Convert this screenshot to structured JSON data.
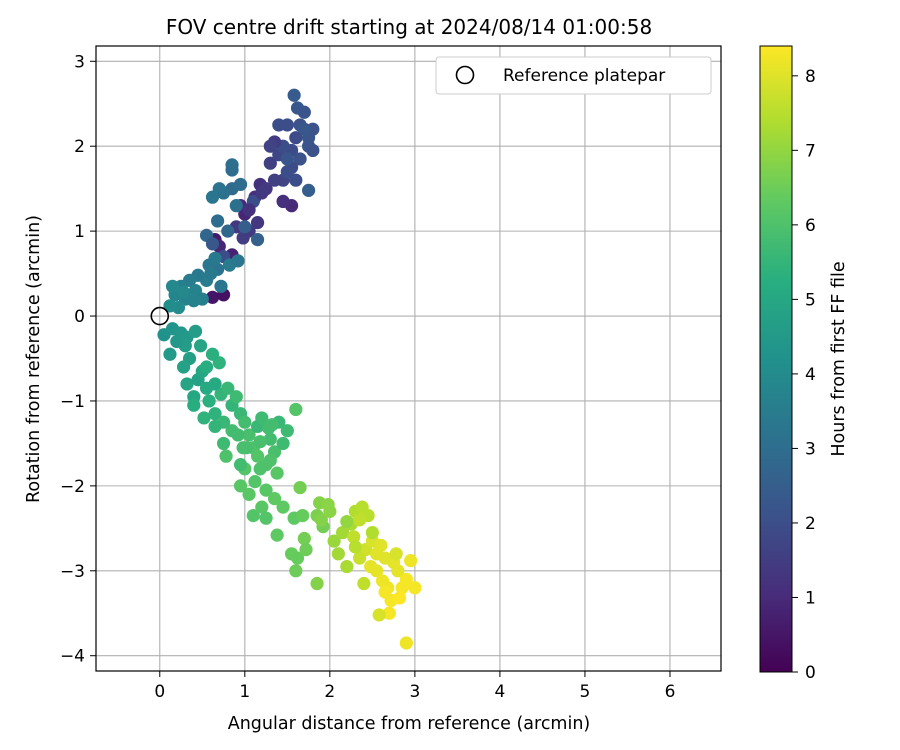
{
  "chart_data": {
    "type": "scatter",
    "title": "FOV centre drift starting at 2024/08/14 01:00:58",
    "xlabel": "Angular distance from reference (arcmin)",
    "ylabel": "Rotation from reference (arcmin)",
    "xlim": [
      -0.75,
      6.6
    ],
    "ylim": [
      -4.18,
      3.18
    ],
    "xticks": [
      "0",
      "1",
      "2",
      "3",
      "4",
      "5",
      "6"
    ],
    "yticks": [
      "3",
      "2",
      "1",
      "0",
      "−1",
      "−2",
      "−3",
      "−4"
    ],
    "grid": true,
    "legend": {
      "position": "top-right",
      "entries": [
        "Reference platepar"
      ]
    },
    "colorbar": {
      "label": "Hours from first FF file",
      "range": [
        0,
        8.4
      ],
      "colormap": "viridis",
      "ticks": [
        "0",
        "1",
        "2",
        "3",
        "4",
        "5",
        "6",
        "7",
        "8"
      ]
    },
    "reference_point": {
      "x": 0,
      "y": 0
    },
    "series": [
      {
        "points": [
          [
            0.62,
            0.22
          ],
          [
            0.75,
            0.25
          ],
          [
            0.65,
            0.9
          ],
          [
            0.7,
            0.82
          ],
          [
            0.85,
            0.72
          ],
          [
            0.95,
            1.3
          ],
          [
            1.0,
            1.2
          ],
          [
            1.12,
            1.4
          ],
          [
            1.18,
            1.55
          ],
          [
            1.15,
            1.1
          ],
          [
            0.98,
            0.92
          ],
          [
            1.05,
            1.0
          ],
          [
            1.3,
            1.8
          ],
          [
            1.45,
            1.6
          ],
          [
            1.4,
            1.9
          ],
          [
            1.55,
            1.95
          ],
          [
            1.45,
            2.0
          ],
          [
            1.55,
            1.75
          ],
          [
            1.65,
            2.25
          ],
          [
            1.75,
            2.1
          ],
          [
            1.62,
            2.45
          ],
          [
            1.7,
            2.4
          ],
          [
            1.58,
            2.6
          ],
          [
            1.8,
            2.2
          ],
          [
            1.5,
            2.25
          ],
          [
            1.35,
            2.05
          ],
          [
            1.25,
            1.5
          ],
          [
            1.1,
            1.35
          ],
          [
            0.9,
            1.05
          ],
          [
            1.55,
            1.3
          ],
          [
            1.65,
            1.85
          ],
          [
            1.5,
            1.85
          ],
          [
            1.3,
            2.0
          ],
          [
            1.45,
            1.35
          ],
          [
            1.6,
            1.6
          ],
          [
            1.75,
            2.0
          ],
          [
            1.7,
            2.2
          ],
          [
            1.4,
            2.25
          ],
          [
            1.6,
            2.1
          ],
          [
            1.8,
            1.95
          ],
          [
            1.75,
            1.48
          ],
          [
            1.5,
            1.7
          ],
          [
            1.35,
            1.6
          ],
          [
            1.2,
            1.45
          ],
          [
            1.05,
            1.25
          ],
          [
            0.85,
            1.5
          ],
          [
            0.95,
            1.55
          ],
          [
            0.75,
            1.45
          ],
          [
            0.7,
            1.5
          ],
          [
            0.62,
            1.4
          ],
          [
            0.68,
            1.12
          ],
          [
            0.8,
            1.0
          ],
          [
            0.9,
            1.3
          ],
          [
            1.0,
            1.05
          ],
          [
            1.15,
            0.9
          ],
          [
            0.55,
            0.95
          ],
          [
            0.62,
            0.85
          ],
          [
            0.75,
            0.7
          ],
          [
            0.68,
            0.55
          ],
          [
            0.58,
            0.6
          ],
          [
            0.55,
            0.42
          ],
          [
            0.45,
            0.48
          ],
          [
            0.35,
            0.42
          ],
          [
            0.25,
            0.35
          ],
          [
            0.3,
            0.2
          ],
          [
            0.18,
            0.25
          ],
          [
            0.15,
            0.35
          ],
          [
            0.22,
            0.1
          ],
          [
            0.28,
            0.28
          ],
          [
            0.42,
            0.3
          ],
          [
            0.5,
            0.2
          ],
          [
            0.6,
            0.5
          ],
          [
            0.72,
            0.35
          ],
          [
            0.82,
            0.6
          ],
          [
            0.92,
            0.65
          ],
          [
            0.85,
            1.78
          ],
          [
            0.85,
            1.72
          ],
          [
            0.65,
            0.68
          ],
          [
            0.4,
            0.18
          ],
          [
            0.12,
            0.12
          ],
          [
            0.05,
            -0.22
          ],
          [
            0.15,
            -0.15
          ],
          [
            0.25,
            -0.2
          ],
          [
            0.32,
            -0.25
          ],
          [
            0.42,
            -0.18
          ],
          [
            0.3,
            -0.35
          ],
          [
            0.35,
            -0.5
          ],
          [
            0.28,
            -0.6
          ],
          [
            0.32,
            -0.8
          ],
          [
            0.4,
            -0.95
          ],
          [
            0.45,
            -0.75
          ],
          [
            0.5,
            -0.65
          ],
          [
            0.55,
            -0.85
          ],
          [
            0.4,
            -1.05
          ],
          [
            0.52,
            -1.2
          ],
          [
            0.58,
            -1.0
          ],
          [
            0.65,
            -1.15
          ],
          [
            0.72,
            -0.92
          ],
          [
            0.8,
            -0.85
          ],
          [
            0.85,
            -1.05
          ],
          [
            0.9,
            -0.95
          ],
          [
            0.95,
            -1.15
          ],
          [
            1.0,
            -1.25
          ],
          [
            1.05,
            -1.4
          ],
          [
            1.1,
            -1.55
          ],
          [
            1.0,
            -1.8
          ],
          [
            0.98,
            -1.55
          ],
          [
            0.85,
            -1.35
          ],
          [
            0.75,
            -1.5
          ],
          [
            0.78,
            -1.65
          ],
          [
            0.7,
            -0.55
          ],
          [
            0.62,
            -0.45
          ],
          [
            0.55,
            -0.6
          ],
          [
            0.48,
            -0.35
          ],
          [
            0.12,
            -0.45
          ],
          [
            0.2,
            -0.3
          ],
          [
            0.65,
            -0.8
          ],
          [
            0.75,
            -1.25
          ],
          [
            0.92,
            -1.4
          ],
          [
            1.15,
            -1.3
          ],
          [
            1.2,
            -1.2
          ],
          [
            1.3,
            -1.45
          ],
          [
            1.35,
            -1.6
          ],
          [
            1.25,
            -1.75
          ],
          [
            1.4,
            -1.25
          ],
          [
            1.5,
            -1.35
          ],
          [
            1.15,
            -1.65
          ],
          [
            1.05,
            -2.1
          ],
          [
            1.1,
            -2.35
          ],
          [
            1.2,
            -2.25
          ],
          [
            1.35,
            -2.15
          ],
          [
            1.25,
            -2.05
          ],
          [
            0.95,
            -2.0
          ],
          [
            1.12,
            -1.95
          ],
          [
            1.3,
            -1.7
          ],
          [
            1.6,
            -1.1
          ],
          [
            1.28,
            -1.32
          ],
          [
            1.18,
            -1.48
          ],
          [
            1.45,
            -1.5
          ],
          [
            1.38,
            -1.85
          ],
          [
            1.25,
            -2.38
          ],
          [
            1.38,
            -2.58
          ],
          [
            1.45,
            -2.25
          ],
          [
            1.58,
            -2.38
          ],
          [
            1.68,
            -2.35
          ],
          [
            1.55,
            -2.8
          ],
          [
            1.62,
            -2.85
          ],
          [
            1.7,
            -2.62
          ],
          [
            1.72,
            -2.75
          ],
          [
            1.65,
            -2.02
          ],
          [
            1.85,
            -2.35
          ],
          [
            1.92,
            -2.48
          ],
          [
            1.9,
            -2.4
          ],
          [
            2.0,
            -2.3
          ],
          [
            1.88,
            -2.2
          ],
          [
            1.98,
            -2.22
          ],
          [
            1.6,
            -3.0
          ],
          [
            1.85,
            -3.15
          ],
          [
            2.1,
            -2.8
          ],
          [
            2.2,
            -2.95
          ],
          [
            2.05,
            -2.65
          ],
          [
            2.15,
            -2.55
          ],
          [
            2.25,
            -2.45
          ],
          [
            2.3,
            -2.3
          ],
          [
            2.38,
            -2.25
          ],
          [
            2.45,
            -2.35
          ],
          [
            2.35,
            -2.4
          ],
          [
            2.28,
            -2.6
          ],
          [
            2.42,
            -2.75
          ],
          [
            2.35,
            -2.85
          ],
          [
            2.5,
            -2.65
          ],
          [
            2.6,
            -2.7
          ],
          [
            2.55,
            -2.8
          ],
          [
            2.48,
            -2.95
          ],
          [
            2.55,
            -3.0
          ],
          [
            2.62,
            -3.12
          ],
          [
            2.68,
            -3.2
          ],
          [
            2.72,
            -3.35
          ],
          [
            2.65,
            -3.25
          ],
          [
            2.8,
            -3.0
          ],
          [
            2.85,
            -3.2
          ],
          [
            2.9,
            -3.1
          ],
          [
            2.82,
            -3.32
          ],
          [
            2.95,
            -2.88
          ],
          [
            2.75,
            -2.9
          ],
          [
            2.65,
            -2.85
          ],
          [
            2.7,
            -3.5
          ],
          [
            2.58,
            -3.52
          ],
          [
            2.9,
            -3.85
          ],
          [
            3.0,
            -3.2
          ],
          [
            2.4,
            -3.15
          ],
          [
            2.3,
            -2.72
          ],
          [
            2.2,
            -2.42
          ],
          [
            2.5,
            -2.55
          ],
          [
            2.78,
            -2.8
          ],
          [
            0.95,
            -1.75
          ],
          [
            0.65,
            -1.3
          ],
          [
            1.18,
            -1.8
          ],
          [
            1.32,
            -1.28
          ],
          [
            1.02,
            -1.55
          ]
        ],
        "hours": [
          0.5,
          0.4,
          0.6,
          0.9,
          0.8,
          1.0,
          0.9,
          1.1,
          1.2,
          1.3,
          1.5,
          1.4,
          1.6,
          1.7,
          1.8,
          1.9,
          2.0,
          1.9,
          2.1,
          2.2,
          2.3,
          2.2,
          2.4,
          2.1,
          2.0,
          1.5,
          1.4,
          2.0,
          1.3,
          1.0,
          2.1,
          2.2,
          1.7,
          1.1,
          2.0,
          2.2,
          2.3,
          2.0,
          1.9,
          2.1,
          2.5,
          2.0,
          1.6,
          1.4,
          1.2,
          2.9,
          3.0,
          3.1,
          3.2,
          3.3,
          3.0,
          2.8,
          3.1,
          2.5,
          2.6,
          2.8,
          2.3,
          2.0,
          3.2,
          3.3,
          3.5,
          3.4,
          3.5,
          3.6,
          3.7,
          3.8,
          3.9,
          4.0,
          3.9,
          3.7,
          3.6,
          3.4,
          3.3,
          3.5,
          3.3,
          3.1,
          3.0,
          3.4,
          3.7,
          4.1,
          4.2,
          4.3,
          4.4,
          4.5,
          4.6,
          4.6,
          4.7,
          4.8,
          4.9,
          5.0,
          4.8,
          5.0,
          5.1,
          5.2,
          5.4,
          5.3,
          5.4,
          5.5,
          5.6,
          5.5,
          5.7,
          5.6,
          5.8,
          5.9,
          6.0,
          6.1,
          5.9,
          5.8,
          5.7,
          6.0,
          5.4,
          5.3,
          5.2,
          4.9,
          4.5,
          4.4,
          5.1,
          5.6,
          5.8,
          5.6,
          5.7,
          5.8,
          5.9,
          6.0,
          5.6,
          5.7,
          6.1,
          6.2,
          6.1,
          6.2,
          6.3,
          6.2,
          6.2,
          6.1,
          6.0,
          6.1,
          5.8,
          5.9,
          5.7,
          6.2,
          6.1,
          6.3,
          6.3,
          6.3,
          6.4,
          6.4,
          6.4,
          6.6,
          6.5,
          6.6,
          6.7,
          6.6,
          6.8,
          6.9,
          6.8,
          6.9,
          6.5,
          6.8,
          7.2,
          7.3,
          7.1,
          7.2,
          7.3,
          7.4,
          7.5,
          7.5,
          7.6,
          7.6,
          7.8,
          7.7,
          7.9,
          8.0,
          8.0,
          8.1,
          8.1,
          8.2,
          8.2,
          8.3,
          8.3,
          8.1,
          8.3,
          8.3,
          8.4,
          8.2,
          8.1,
          8.0,
          8.3,
          7.9,
          8.2,
          8.3,
          7.6,
          7.5,
          7.0,
          7.4,
          7.9,
          5.8,
          5.5,
          6.0,
          5.8,
          5.9
        ]
      }
    ]
  }
}
